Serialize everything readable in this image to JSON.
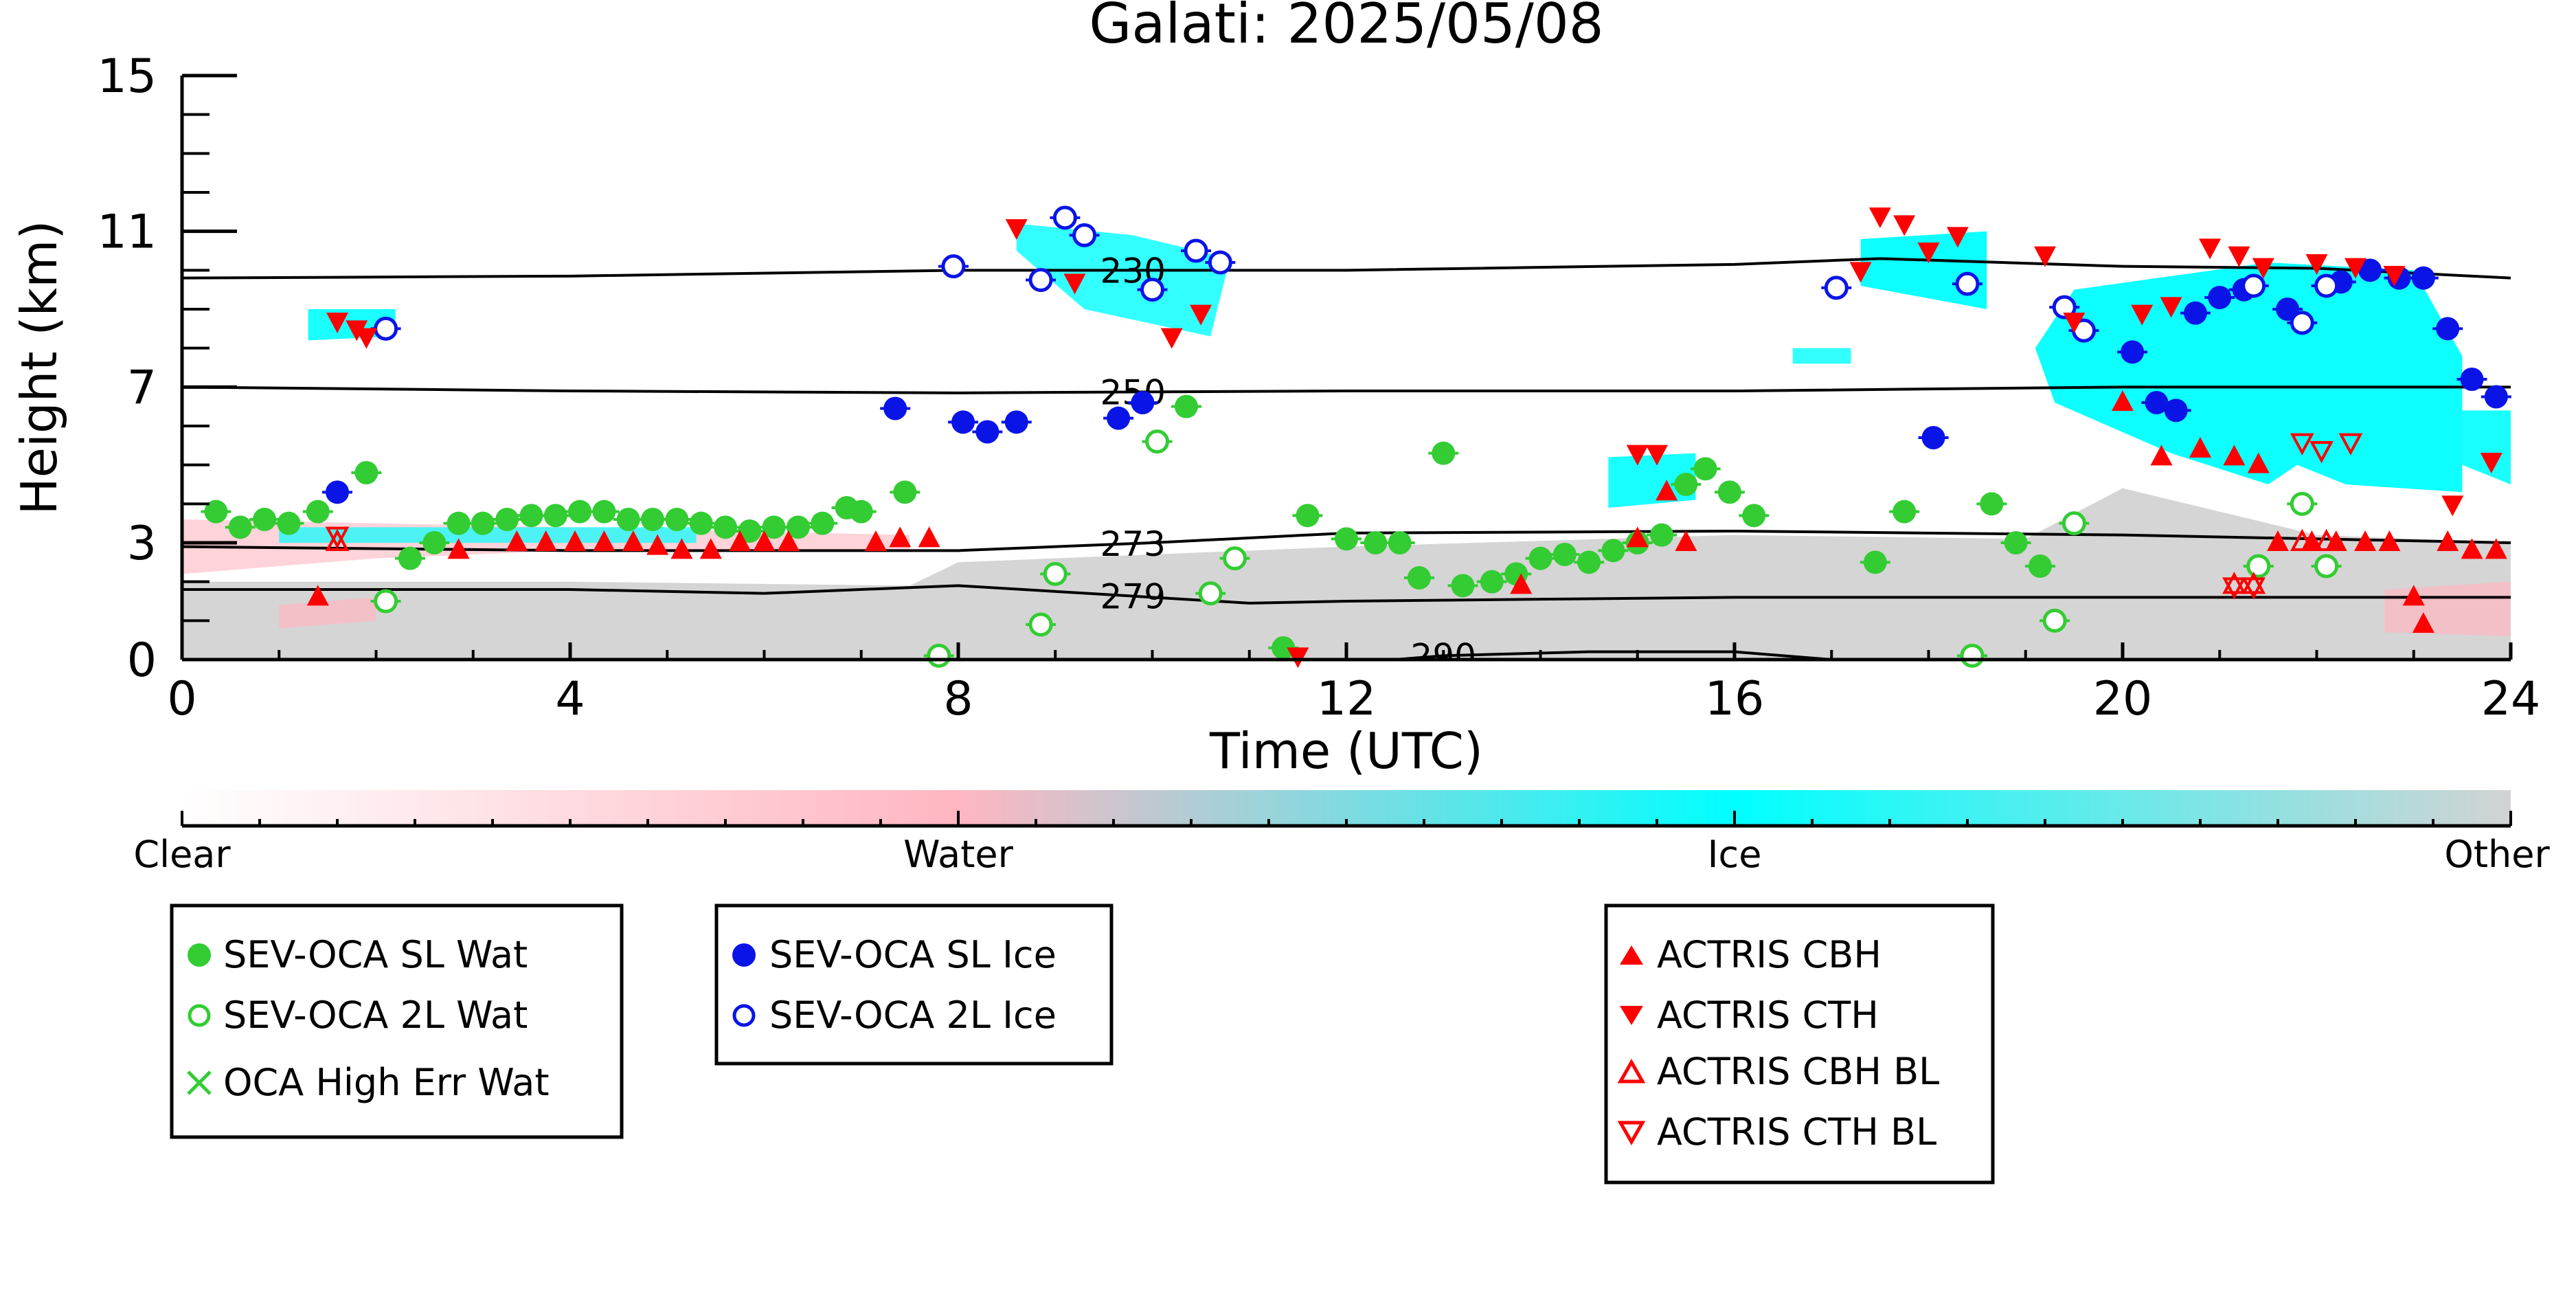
{
  "chart_data": {
    "type": "scatter",
    "title": "Galati: 2025/05/08",
    "xlabel": "Time (UTC)",
    "ylabel": "Height (km)",
    "xlim": [
      0,
      24
    ],
    "ylim": [
      0,
      15
    ],
    "xticks": [
      "0",
      "4",
      "8",
      "12",
      "16",
      "20",
      "24"
    ],
    "yticks": [
      "0",
      "3",
      "7",
      "11",
      "15"
    ],
    "colorbar": {
      "labels": [
        "Clear",
        "Water",
        "Ice",
        "Other"
      ],
      "colors": {
        "clear": "#ffffff",
        "water": "#ffb6c1",
        "ice": "#00ffff",
        "other": "#d3d3d3"
      }
    },
    "isotherms": [
      {
        "label": "230",
        "points": [
          [
            0,
            9.8
          ],
          [
            4,
            9.85
          ],
          [
            8,
            10.0
          ],
          [
            12,
            10.0
          ],
          [
            16,
            10.15
          ],
          [
            17.5,
            10.3
          ],
          [
            20,
            10.1
          ],
          [
            22,
            10.05
          ],
          [
            24,
            9.8
          ]
        ]
      },
      {
        "label": "250",
        "points": [
          [
            0,
            7.0
          ],
          [
            4,
            6.9
          ],
          [
            8,
            6.85
          ],
          [
            12,
            6.9
          ],
          [
            16,
            6.9
          ],
          [
            20,
            7.0
          ],
          [
            24,
            7.0
          ]
        ]
      },
      {
        "label": "273",
        "points": [
          [
            0,
            2.9
          ],
          [
            4,
            2.8
          ],
          [
            8,
            2.8
          ],
          [
            10,
            3.0
          ],
          [
            12,
            3.25
          ],
          [
            16,
            3.3
          ],
          [
            20,
            3.2
          ],
          [
            24,
            3.0
          ]
        ]
      },
      {
        "label": "279",
        "points": [
          [
            0,
            1.8
          ],
          [
            4,
            1.8
          ],
          [
            6,
            1.7
          ],
          [
            8,
            1.9
          ],
          [
            10,
            1.6
          ],
          [
            11,
            1.45
          ],
          [
            12,
            1.5
          ],
          [
            14,
            1.55
          ],
          [
            16,
            1.6
          ],
          [
            20,
            1.6
          ],
          [
            24,
            1.6
          ]
        ]
      },
      {
        "label": "290",
        "points": [
          [
            11.5,
            0.0
          ],
          [
            12.5,
            0.0
          ],
          [
            13,
            0.1
          ],
          [
            14.5,
            0.2
          ],
          [
            16,
            0.2
          ],
          [
            17,
            0.0
          ]
        ]
      }
    ],
    "series": [
      {
        "name": "SEV-OCA SL Wat",
        "color": "#33cc33",
        "marker": "circle-filled",
        "x": [
          0.35,
          0.6,
          0.85,
          1.1,
          1.4,
          1.9,
          2.35,
          2.6,
          2.85,
          3.1,
          3.35,
          3.6,
          3.85,
          4.1,
          4.35,
          4.6,
          4.85,
          5.1,
          5.35,
          5.6,
          5.85,
          6.1,
          6.35,
          6.6,
          6.85,
          7.0,
          7.45,
          10.35,
          11.35,
          11.6,
          12.0,
          12.3,
          12.55,
          12.75,
          13.0,
          13.2,
          13.5,
          13.75,
          14.0,
          14.25,
          14.5,
          14.75,
          15.0,
          15.25,
          15.5,
          15.7,
          15.95,
          16.2,
          17.45,
          17.75,
          18.65,
          18.9,
          19.15
        ],
        "y": [
          3.8,
          3.4,
          3.6,
          3.5,
          3.8,
          4.8,
          2.6,
          3.0,
          3.5,
          3.5,
          3.6,
          3.7,
          3.7,
          3.8,
          3.8,
          3.6,
          3.6,
          3.6,
          3.5,
          3.4,
          3.3,
          3.4,
          3.4,
          3.5,
          3.9,
          3.8,
          4.3,
          6.5,
          0.3,
          3.7,
          3.1,
          3.0,
          3.0,
          2.1,
          5.3,
          1.9,
          2.0,
          2.2,
          2.6,
          2.7,
          2.5,
          2.8,
          3.0,
          3.2,
          4.5,
          4.9,
          4.3,
          3.7,
          2.5,
          3.8,
          4.0,
          3.0,
          2.4
        ]
      },
      {
        "name": "SEV-OCA 2L Wat",
        "color": "#33cc33",
        "marker": "circle-open",
        "x": [
          2.1,
          7.8,
          8.85,
          9.0,
          10.05,
          10.6,
          10.85,
          18.45,
          19.3,
          19.5,
          21.4,
          21.85,
          22.1
        ],
        "y": [
          1.5,
          0.1,
          0.9,
          2.2,
          5.6,
          1.7,
          2.6,
          0.1,
          1.0,
          3.5,
          2.4,
          4.0,
          2.4
        ]
      },
      {
        "name": "OCA High Err Wat",
        "color": "#33cc33",
        "marker": "x",
        "x": [],
        "y": []
      },
      {
        "name": "SEV-OCA SL Ice",
        "color": "#0a14e6",
        "marker": "circle-filled",
        "x": [
          1.6,
          7.35,
          8.05,
          8.3,
          8.6,
          9.65,
          9.9,
          18.05,
          20.1,
          20.35,
          20.55,
          20.75,
          21.0,
          21.25,
          21.7,
          22.25,
          22.55,
          22.85,
          23.1,
          23.35,
          23.6,
          23.85
        ],
        "y": [
          4.3,
          6.45,
          6.1,
          5.85,
          6.1,
          6.2,
          6.6,
          5.7,
          7.9,
          6.6,
          6.4,
          8.9,
          9.3,
          9.5,
          9.0,
          9.7,
          10.0,
          9.8,
          9.8,
          8.5,
          7.2,
          6.75
        ]
      },
      {
        "name": "SEV-OCA 2L Ice",
        "color": "#0a14e6",
        "marker": "circle-open",
        "x": [
          2.1,
          7.95,
          8.85,
          9.1,
          9.3,
          10.0,
          10.45,
          10.7,
          17.05,
          18.4,
          19.4,
          19.6,
          21.35,
          21.85,
          22.1
        ],
        "y": [
          8.5,
          10.1,
          9.75,
          11.35,
          10.9,
          9.5,
          10.5,
          10.2,
          9.55,
          9.65,
          9.05,
          8.45,
          9.6,
          8.65,
          9.6
        ]
      },
      {
        "name": "ACTRIS CBH",
        "color": "#ff0000",
        "marker": "triangle-up",
        "x": [
          1.4,
          2.85,
          3.45,
          3.75,
          4.05,
          4.35,
          4.65,
          4.9,
          5.15,
          5.45,
          5.75,
          6.0,
          6.25,
          7.15,
          7.4,
          7.7,
          13.8,
          15.0,
          15.3,
          15.5,
          20.0,
          20.4,
          20.8,
          21.15,
          21.4,
          21.6,
          21.95,
          22.2,
          22.5,
          22.75,
          23.0,
          23.1,
          23.35,
          23.6,
          23.85
        ],
        "y": [
          1.6,
          2.8,
          3.0,
          3.0,
          3.0,
          3.0,
          3.0,
          2.9,
          2.8,
          2.8,
          3.0,
          3.0,
          3.0,
          3.0,
          3.1,
          3.1,
          1.9,
          3.1,
          4.3,
          3.0,
          6.6,
          5.2,
          5.4,
          5.2,
          5.0,
          3.0,
          3.0,
          3.0,
          3.0,
          3.0,
          1.6,
          0.9,
          3.0,
          2.8,
          2.8
        ]
      },
      {
        "name": "ACTRIS CTH",
        "color": "#ff0000",
        "marker": "triangle-down",
        "x": [
          1.6,
          1.8,
          1.9,
          8.6,
          9.2,
          10.2,
          10.5,
          11.5,
          15.0,
          15.2,
          17.3,
          17.5,
          17.75,
          18.0,
          18.3,
          19.2,
          19.5,
          20.2,
          20.5,
          20.9,
          21.2,
          21.45,
          22.0,
          22.4,
          22.8,
          23.4,
          23.8
        ],
        "y": [
          8.7,
          8.5,
          8.3,
          11.1,
          9.7,
          8.3,
          8.9,
          0.1,
          5.3,
          5.3,
          10.0,
          11.4,
          11.2,
          10.5,
          10.9,
          10.4,
          8.7,
          8.9,
          9.1,
          10.6,
          10.4,
          10.1,
          10.2,
          10.1,
          9.9,
          4.0,
          5.1
        ]
      },
      {
        "name": "ACTRIS CBH BL",
        "color": "#ff0000",
        "marker": "triangle-up-open",
        "x": [
          1.6,
          21.15,
          21.35,
          21.85,
          22.1
        ],
        "y": [
          3.0,
          1.9,
          1.9,
          3.0,
          3.0
        ]
      },
      {
        "name": "ACTRIS CTH BL",
        "color": "#ff0000",
        "marker": "triangle-down-open",
        "x": [
          1.6,
          21.15,
          21.35,
          21.85,
          22.05,
          22.35
        ],
        "y": [
          3.2,
          1.9,
          1.9,
          5.6,
          5.4,
          5.6
        ]
      }
    ],
    "legend_groups": [
      [
        "SEV-OCA SL Wat",
        "SEV-OCA 2L Wat",
        "OCA High Err Wat"
      ],
      [
        "SEV-OCA SL Ice",
        "SEV-OCA 2L Ice"
      ],
      [
        "ACTRIS CBH",
        "ACTRIS CTH",
        "ACTRIS CBH BL",
        "ACTRIS CTH BL"
      ]
    ]
  }
}
